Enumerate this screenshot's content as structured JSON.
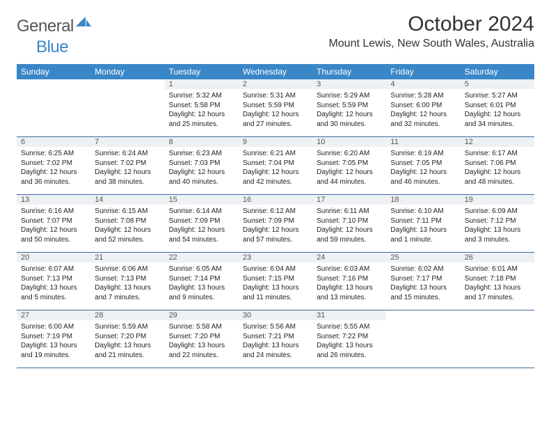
{
  "brand": {
    "name_a": "General",
    "name_b": "Blue",
    "accent": "#3a87c8"
  },
  "title": "October 2024",
  "location": "Mount Lewis, New South Wales, Australia",
  "header_bg": "#3a87c8",
  "header_text": "#ffffff",
  "daynum_bg": "#eef1f4",
  "row_border": "#3a6a9a",
  "body_fontsize": 10,
  "daynames": [
    "Sunday",
    "Monday",
    "Tuesday",
    "Wednesday",
    "Thursday",
    "Friday",
    "Saturday"
  ],
  "weeks": [
    [
      null,
      null,
      {
        "d": "1",
        "sr": "Sunrise: 5:32 AM",
        "ss": "Sunset: 5:58 PM",
        "dl1": "Daylight: 12 hours",
        "dl2": "and 25 minutes."
      },
      {
        "d": "2",
        "sr": "Sunrise: 5:31 AM",
        "ss": "Sunset: 5:59 PM",
        "dl1": "Daylight: 12 hours",
        "dl2": "and 27 minutes."
      },
      {
        "d": "3",
        "sr": "Sunrise: 5:29 AM",
        "ss": "Sunset: 5:59 PM",
        "dl1": "Daylight: 12 hours",
        "dl2": "and 30 minutes."
      },
      {
        "d": "4",
        "sr": "Sunrise: 5:28 AM",
        "ss": "Sunset: 6:00 PM",
        "dl1": "Daylight: 12 hours",
        "dl2": "and 32 minutes."
      },
      {
        "d": "5",
        "sr": "Sunrise: 5:27 AM",
        "ss": "Sunset: 6:01 PM",
        "dl1": "Daylight: 12 hours",
        "dl2": "and 34 minutes."
      }
    ],
    [
      {
        "d": "6",
        "sr": "Sunrise: 6:25 AM",
        "ss": "Sunset: 7:02 PM",
        "dl1": "Daylight: 12 hours",
        "dl2": "and 36 minutes."
      },
      {
        "d": "7",
        "sr": "Sunrise: 6:24 AM",
        "ss": "Sunset: 7:02 PM",
        "dl1": "Daylight: 12 hours",
        "dl2": "and 38 minutes."
      },
      {
        "d": "8",
        "sr": "Sunrise: 6:23 AM",
        "ss": "Sunset: 7:03 PM",
        "dl1": "Daylight: 12 hours",
        "dl2": "and 40 minutes."
      },
      {
        "d": "9",
        "sr": "Sunrise: 6:21 AM",
        "ss": "Sunset: 7:04 PM",
        "dl1": "Daylight: 12 hours",
        "dl2": "and 42 minutes."
      },
      {
        "d": "10",
        "sr": "Sunrise: 6:20 AM",
        "ss": "Sunset: 7:05 PM",
        "dl1": "Daylight: 12 hours",
        "dl2": "and 44 minutes."
      },
      {
        "d": "11",
        "sr": "Sunrise: 6:19 AM",
        "ss": "Sunset: 7:05 PM",
        "dl1": "Daylight: 12 hours",
        "dl2": "and 46 minutes."
      },
      {
        "d": "12",
        "sr": "Sunrise: 6:17 AM",
        "ss": "Sunset: 7:06 PM",
        "dl1": "Daylight: 12 hours",
        "dl2": "and 48 minutes."
      }
    ],
    [
      {
        "d": "13",
        "sr": "Sunrise: 6:16 AM",
        "ss": "Sunset: 7:07 PM",
        "dl1": "Daylight: 12 hours",
        "dl2": "and 50 minutes."
      },
      {
        "d": "14",
        "sr": "Sunrise: 6:15 AM",
        "ss": "Sunset: 7:08 PM",
        "dl1": "Daylight: 12 hours",
        "dl2": "and 52 minutes."
      },
      {
        "d": "15",
        "sr": "Sunrise: 6:14 AM",
        "ss": "Sunset: 7:09 PM",
        "dl1": "Daylight: 12 hours",
        "dl2": "and 54 minutes."
      },
      {
        "d": "16",
        "sr": "Sunrise: 6:12 AM",
        "ss": "Sunset: 7:09 PM",
        "dl1": "Daylight: 12 hours",
        "dl2": "and 57 minutes."
      },
      {
        "d": "17",
        "sr": "Sunrise: 6:11 AM",
        "ss": "Sunset: 7:10 PM",
        "dl1": "Daylight: 12 hours",
        "dl2": "and 59 minutes."
      },
      {
        "d": "18",
        "sr": "Sunrise: 6:10 AM",
        "ss": "Sunset: 7:11 PM",
        "dl1": "Daylight: 13 hours",
        "dl2": "and 1 minute."
      },
      {
        "d": "19",
        "sr": "Sunrise: 6:09 AM",
        "ss": "Sunset: 7:12 PM",
        "dl1": "Daylight: 13 hours",
        "dl2": "and 3 minutes."
      }
    ],
    [
      {
        "d": "20",
        "sr": "Sunrise: 6:07 AM",
        "ss": "Sunset: 7:13 PM",
        "dl1": "Daylight: 13 hours",
        "dl2": "and 5 minutes."
      },
      {
        "d": "21",
        "sr": "Sunrise: 6:06 AM",
        "ss": "Sunset: 7:13 PM",
        "dl1": "Daylight: 13 hours",
        "dl2": "and 7 minutes."
      },
      {
        "d": "22",
        "sr": "Sunrise: 6:05 AM",
        "ss": "Sunset: 7:14 PM",
        "dl1": "Daylight: 13 hours",
        "dl2": "and 9 minutes."
      },
      {
        "d": "23",
        "sr": "Sunrise: 6:04 AM",
        "ss": "Sunset: 7:15 PM",
        "dl1": "Daylight: 13 hours",
        "dl2": "and 11 minutes."
      },
      {
        "d": "24",
        "sr": "Sunrise: 6:03 AM",
        "ss": "Sunset: 7:16 PM",
        "dl1": "Daylight: 13 hours",
        "dl2": "and 13 minutes."
      },
      {
        "d": "25",
        "sr": "Sunrise: 6:02 AM",
        "ss": "Sunset: 7:17 PM",
        "dl1": "Daylight: 13 hours",
        "dl2": "and 15 minutes."
      },
      {
        "d": "26",
        "sr": "Sunrise: 6:01 AM",
        "ss": "Sunset: 7:18 PM",
        "dl1": "Daylight: 13 hours",
        "dl2": "and 17 minutes."
      }
    ],
    [
      {
        "d": "27",
        "sr": "Sunrise: 6:00 AM",
        "ss": "Sunset: 7:19 PM",
        "dl1": "Daylight: 13 hours",
        "dl2": "and 19 minutes."
      },
      {
        "d": "28",
        "sr": "Sunrise: 5:59 AM",
        "ss": "Sunset: 7:20 PM",
        "dl1": "Daylight: 13 hours",
        "dl2": "and 21 minutes."
      },
      {
        "d": "29",
        "sr": "Sunrise: 5:58 AM",
        "ss": "Sunset: 7:20 PM",
        "dl1": "Daylight: 13 hours",
        "dl2": "and 22 minutes."
      },
      {
        "d": "30",
        "sr": "Sunrise: 5:56 AM",
        "ss": "Sunset: 7:21 PM",
        "dl1": "Daylight: 13 hours",
        "dl2": "and 24 minutes."
      },
      {
        "d": "31",
        "sr": "Sunrise: 5:55 AM",
        "ss": "Sunset: 7:22 PM",
        "dl1": "Daylight: 13 hours",
        "dl2": "and 26 minutes."
      },
      null,
      null
    ]
  ]
}
